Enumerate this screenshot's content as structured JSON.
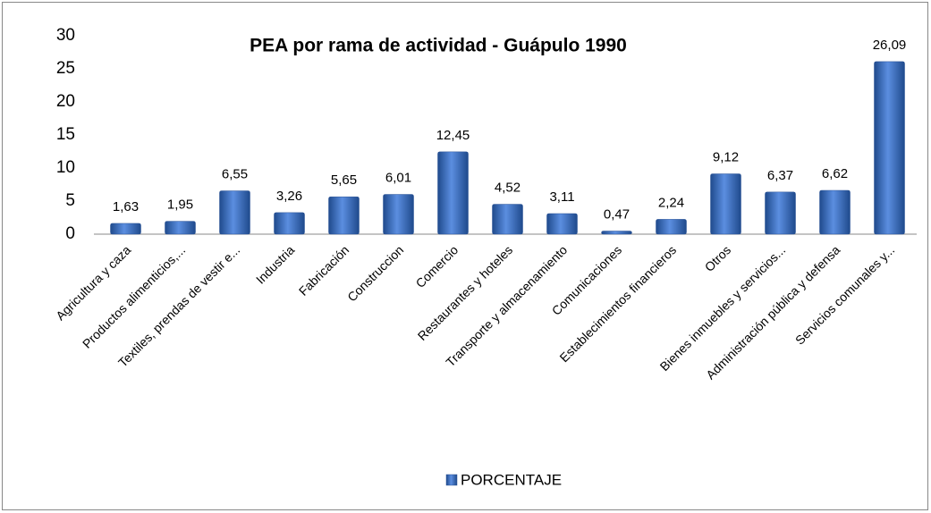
{
  "chart_data": {
    "type": "bar",
    "title": "PEA por rama de actividad - Guápulo 1990",
    "categories": [
      "Agricultura y caza",
      "Productos alimenticios,...",
      "Textiles, prendas de vestir e...",
      "Industria",
      "Fabricación",
      "Construccion",
      "Comercio",
      "Restaurantes y hoteles",
      "Transporte y almacenamiento",
      "Comunicaciones",
      "Establecimientos financieros",
      "Otros",
      "Bienes inmuebles y servicios...",
      "Administración pública y defensa",
      "Servicios comunales y..."
    ],
    "series": [
      {
        "name": "PORCENTAJE",
        "color": "#3e6fc0",
        "values": [
          1.63,
          1.95,
          6.55,
          3.26,
          5.65,
          6.01,
          12.45,
          4.52,
          3.11,
          0.47,
          2.24,
          9.12,
          6.37,
          6.62,
          26.09
        ],
        "value_labels": [
          "1,63",
          "1,95",
          "6,55",
          "3,26",
          "5,65",
          "6,01",
          "12,45",
          "4,52",
          "3,11",
          "0,47",
          "2,24",
          "9,12",
          "6,37",
          "6,62",
          "26,09"
        ]
      }
    ],
    "ylim": [
      0,
      30
    ],
    "yticks": [
      0,
      5,
      10,
      15,
      20,
      25,
      30
    ],
    "grid": false,
    "legend": "bottom"
  }
}
